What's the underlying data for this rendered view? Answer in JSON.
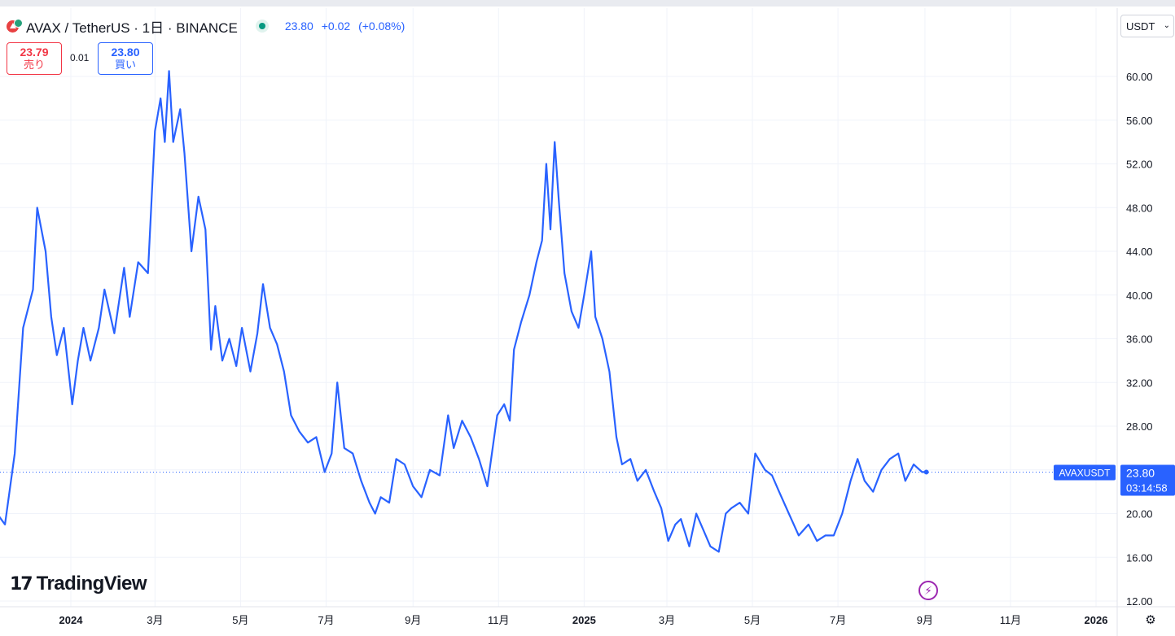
{
  "header": {
    "title": "AVAX / TetherUS · 1日 · BINANCE",
    "last_price": "23.80",
    "change": "+0.02",
    "change_pct": "(+0.08%)"
  },
  "trade": {
    "sell_price": "23.79",
    "sell_label": "売り",
    "spread": "0.01",
    "buy_price": "23.80",
    "buy_label": "買い"
  },
  "currency": "USDT",
  "branding": "TradingView",
  "colors": {
    "line": "#2962ff",
    "sell": "#f23645",
    "buy": "#2962ff",
    "price_label_bg": "#2962ff"
  },
  "chart_data": {
    "type": "line",
    "series": [
      {
        "name": "AVAXUSDT",
        "x": [
          "2023-11-01",
          "2023-11-15",
          "2023-11-22",
          "2023-11-28",
          "2023-12-05",
          "2023-12-08",
          "2023-12-14",
          "2023-12-18",
          "2023-12-22",
          "2023-12-27",
          "2024-01-02",
          "2024-01-06",
          "2024-01-10",
          "2024-01-15",
          "2024-01-21",
          "2024-01-25",
          "2024-02-01",
          "2024-02-08",
          "2024-02-12",
          "2024-02-18",
          "2024-02-25",
          "2024-03-01",
          "2024-03-05",
          "2024-03-08",
          "2024-03-11",
          "2024-03-14",
          "2024-03-19",
          "2024-03-22",
          "2024-03-27",
          "2024-04-01",
          "2024-04-06",
          "2024-04-10",
          "2024-04-13",
          "2024-04-18",
          "2024-04-23",
          "2024-04-28",
          "2024-05-02",
          "2024-05-08",
          "2024-05-13",
          "2024-05-17",
          "2024-05-22",
          "2024-05-27",
          "2024-06-01",
          "2024-06-06",
          "2024-06-12",
          "2024-06-18",
          "2024-06-24",
          "2024-06-30",
          "2024-07-05",
          "2024-07-09",
          "2024-07-14",
          "2024-07-20",
          "2024-07-26",
          "2024-08-01",
          "2024-08-05",
          "2024-08-09",
          "2024-08-15",
          "2024-08-20",
          "2024-08-26",
          "2024-09-01",
          "2024-09-07",
          "2024-09-13",
          "2024-09-20",
          "2024-09-26",
          "2024-09-30",
          "2024-10-06",
          "2024-10-12",
          "2024-10-18",
          "2024-10-24",
          "2024-10-31",
          "2024-11-05",
          "2024-11-09",
          "2024-11-12",
          "2024-11-17",
          "2024-11-23",
          "2024-11-28",
          "2024-12-02",
          "2024-12-05",
          "2024-12-08",
          "2024-12-11",
          "2024-12-14",
          "2024-12-18",
          "2024-12-23",
          "2024-12-28",
          "2025-01-01",
          "2025-01-06",
          "2025-01-09",
          "2025-01-14",
          "2025-01-19",
          "2025-01-24",
          "2025-01-28",
          "2025-02-03",
          "2025-02-08",
          "2025-02-14",
          "2025-02-20",
          "2025-02-25",
          "2025-03-02",
          "2025-03-07",
          "2025-03-11",
          "2025-03-17",
          "2025-03-22",
          "2025-03-27",
          "2025-04-01",
          "2025-04-07",
          "2025-04-12",
          "2025-04-16",
          "2025-04-22",
          "2025-04-28",
          "2025-05-03",
          "2025-05-10",
          "2025-05-15",
          "2025-05-20",
          "2025-05-27",
          "2025-06-03",
          "2025-06-10",
          "2025-06-16",
          "2025-06-22",
          "2025-06-28",
          "2025-07-04",
          "2025-07-10",
          "2025-07-15",
          "2025-07-20",
          "2025-07-26",
          "2025-08-01",
          "2025-08-07",
          "2025-08-13",
          "2025-08-18",
          "2025-08-24",
          "2025-08-30",
          "2025-09-02"
        ],
        "values": [
          21.5,
          19.0,
          25.5,
          37.0,
          40.5,
          48.0,
          44.0,
          38.0,
          34.5,
          37.0,
          30.0,
          34.0,
          37.0,
          34.0,
          37.0,
          40.5,
          36.5,
          42.5,
          38.0,
          43.0,
          42.0,
          55.0,
          58.0,
          54.0,
          60.5,
          54.0,
          57.0,
          53.0,
          44.0,
          49.0,
          46.0,
          35.0,
          39.0,
          34.0,
          36.0,
          33.5,
          37.0,
          33.0,
          36.5,
          41.0,
          37.0,
          35.5,
          33.0,
          29.0,
          27.5,
          26.5,
          27.0,
          23.8,
          25.5,
          32.0,
          26.0,
          25.5,
          23.0,
          21.0,
          20.0,
          21.5,
          21.0,
          25.0,
          24.5,
          22.5,
          21.5,
          24.0,
          23.5,
          29.0,
          26.0,
          28.5,
          27.0,
          25.0,
          22.5,
          29.0,
          30.0,
          28.5,
          35.0,
          37.5,
          40.0,
          43.0,
          45.0,
          52.0,
          46.0,
          54.0,
          48.5,
          42.0,
          38.5,
          37.0,
          40.0,
          44.0,
          38.0,
          36.0,
          33.0,
          27.0,
          24.5,
          25.0,
          23.0,
          24.0,
          22.0,
          20.5,
          17.5,
          19.0,
          19.5,
          17.0,
          20.0,
          18.5,
          17.0,
          16.5,
          20.0,
          20.5,
          21.0,
          20.0,
          25.5,
          24.0,
          23.5,
          22.0,
          20.0,
          18.0,
          19.0,
          17.5,
          18.0,
          18.0,
          20.0,
          23.0,
          25.0,
          23.0,
          22.0,
          24.0,
          25.0,
          25.5,
          23.0,
          24.5,
          23.8,
          23.8
        ]
      }
    ],
    "x_ticks": [
      "2024",
      "3月",
      "5月",
      "7月",
      "9月",
      "11月",
      "2025",
      "3月",
      "5月",
      "7月",
      "9月",
      "11月",
      "2026"
    ],
    "x_tick_dates": [
      "2024-01-01",
      "2024-03-01",
      "2024-05-01",
      "2024-07-01",
      "2024-09-01",
      "2024-11-01",
      "2025-01-01",
      "2025-03-01",
      "2025-05-01",
      "2025-07-01",
      "2025-09-01",
      "2025-11-01",
      "2026-01-01"
    ],
    "y_ticks": [
      "12.00",
      "16.00",
      "20.00",
      "24.00",
      "28.00",
      "32.00",
      "36.00",
      "40.00",
      "44.00",
      "48.00",
      "52.00",
      "56.00",
      "60.00"
    ],
    "ylim": [
      12,
      62
    ],
    "last_value": 23.8,
    "last_value_label": "23.80",
    "last_value_series_label": "AVAXUSDT",
    "countdown": "03:14:58",
    "grid": true
  }
}
